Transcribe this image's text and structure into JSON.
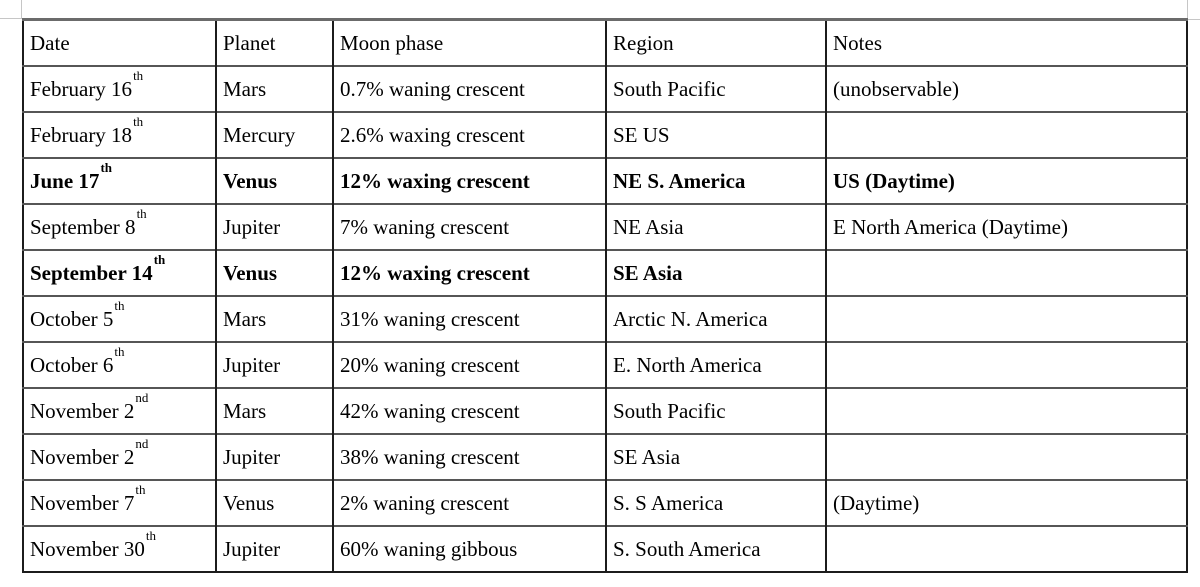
{
  "colors": {
    "page_background": "#ffffff",
    "text": "#000000",
    "table_border_dark": "#1c1c1c",
    "table_border_gray": "#565656",
    "table_border_top": "#6b6b6b",
    "guide_line": "#c6c6c6"
  },
  "table": {
    "headers": [
      "Date",
      "Planet",
      "Moon phase",
      "Region",
      "Notes"
    ],
    "rows": [
      {
        "date": "February 16",
        "date_suffix": "th",
        "planet": "Mars",
        "moon_phase": "0.7% waning crescent",
        "region": "South Pacific",
        "notes": "(unobservable)",
        "bold": false
      },
      {
        "date": "February 18",
        "date_suffix": "th",
        "planet": "Mercury",
        "moon_phase": "2.6% waxing crescent",
        "region": "SE US",
        "notes": "",
        "bold": false
      },
      {
        "date": "June 17",
        "date_suffix": "th",
        "planet": "Venus",
        "moon_phase": "12% waxing crescent",
        "region": "NE S. America",
        "notes": "US (Daytime)",
        "bold": true
      },
      {
        "date": "September 8",
        "date_suffix": "th",
        "planet": "Jupiter",
        "moon_phase": "7% waning crescent",
        "region": "NE Asia",
        "notes": "E North America (Daytime)",
        "bold": false
      },
      {
        "date": "September 14",
        "date_suffix": "th",
        "planet": "Venus",
        "moon_phase": "12% waxing crescent",
        "region": "SE Asia",
        "notes": "",
        "bold": true
      },
      {
        "date": "October 5",
        "date_suffix": "th",
        "planet": "Mars",
        "moon_phase": "31% waning crescent",
        "region": "Arctic N. America",
        "notes": "",
        "bold": false
      },
      {
        "date": "October 6",
        "date_suffix": "th",
        "planet": "Jupiter",
        "moon_phase": "20% waning crescent",
        "region": "E. North America",
        "notes": "",
        "bold": false
      },
      {
        "date": "November 2",
        "date_suffix": "nd",
        "planet": "Mars",
        "moon_phase": "42% waning crescent",
        "region": "South Pacific",
        "notes": "",
        "bold": false
      },
      {
        "date": "November 2",
        "date_suffix": "nd",
        "planet": "Jupiter",
        "moon_phase": "38% waning crescent",
        "region": "SE Asia",
        "notes": "",
        "bold": false
      },
      {
        "date": "November 7",
        "date_suffix": "th",
        "planet": "Venus",
        "moon_phase": "2% waning crescent",
        "region": "S. S America",
        "notes": "(Daytime)",
        "bold": false
      },
      {
        "date": "November 30",
        "date_suffix": "th",
        "planet": "Jupiter",
        "moon_phase": "60% waning gibbous",
        "region": "S. South America",
        "notes": "",
        "bold": false
      }
    ]
  }
}
